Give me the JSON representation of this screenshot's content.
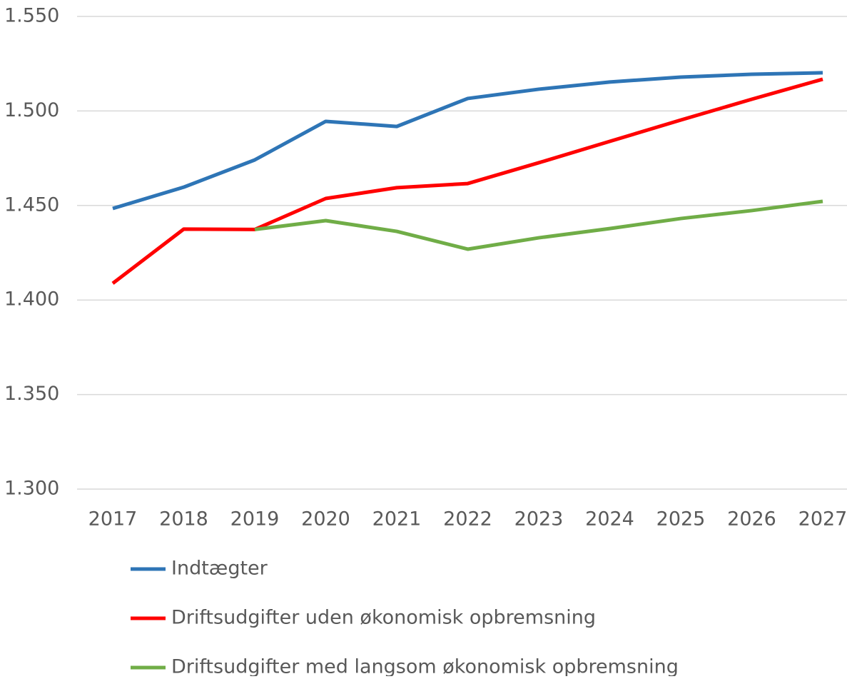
{
  "chart_data": {
    "type": "line",
    "x": [
      "2017",
      "2018",
      "2019",
      "2020",
      "2021",
      "2022",
      "2023",
      "2024",
      "2025",
      "2026",
      "2027"
    ],
    "series": [
      {
        "name": "Indtægter",
        "color": "#2e75b6",
        "values": [
          1448.4,
          1459.7,
          1474.1,
          1494.5,
          1491.8,
          1506.6,
          1511.5,
          1515.3,
          1517.9,
          1519.4,
          1520.2
        ]
      },
      {
        "name": "Driftsudgifter uden økonomisk opbremsning",
        "color": "#ff0000",
        "values": [
          1408.8,
          1437.5,
          1437.3,
          1453.7,
          1459.4,
          1461.6,
          1472.6,
          1483.9,
          1495.2,
          1506.2,
          1516.8
        ]
      },
      {
        "name": "Driftsudgifter med langsom økonomisk opbremsning",
        "color": "#70ad47",
        "values": [
          null,
          null,
          1437.3,
          1442.0,
          1436.3,
          1426.9,
          1432.9,
          1437.8,
          1443.1,
          1447.3,
          1452.2
        ]
      }
    ],
    "ylim": [
      1300,
      1550
    ],
    "yticks": [
      {
        "value": 1300,
        "label": "1.300"
      },
      {
        "value": 1350,
        "label": "1.350"
      },
      {
        "value": 1400,
        "label": "1.400"
      },
      {
        "value": 1450,
        "label": "1.450"
      },
      {
        "value": 1500,
        "label": "1.500"
      },
      {
        "value": 1550,
        "label": "1.550"
      }
    ],
    "grid": true,
    "legend": "bottom"
  }
}
